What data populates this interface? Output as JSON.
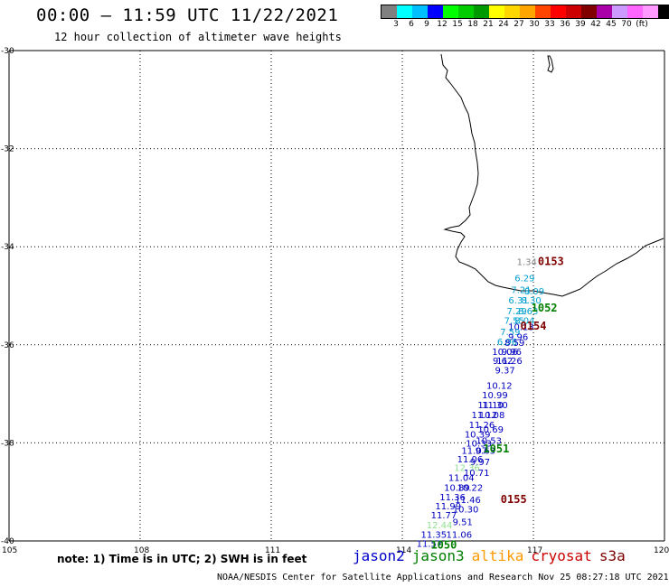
{
  "header": {
    "title": "00:00 – 11:59 UTC 11/22/2021",
    "subtitle": "12 hour collection of altimeter wave heights"
  },
  "colorbar": {
    "colors": [
      "#808080",
      "#00ffff",
      "#00bfff",
      "#0000ff",
      "#00ff00",
      "#00cc00",
      "#009900",
      "#ffff00",
      "#ffd700",
      "#ffa500",
      "#ff4500",
      "#ff0000",
      "#cc0000",
      "#800000",
      "#aa00aa",
      "#cc99ff",
      "#ff66ff",
      "#ff99ff",
      "#000000"
    ],
    "labels": [
      "3",
      "6",
      "9",
      "12",
      "15",
      "18",
      "21",
      "24",
      "27",
      "30",
      "33",
      "36",
      "39",
      "42",
      "45",
      "70",
      "(ft)"
    ]
  },
  "axes": {
    "lat_labels": [
      "-30",
      "-32",
      "-34",
      "-36",
      "-38",
      "-40"
    ],
    "lon_labels": [
      "105",
      "108",
      "111",
      "114",
      "117",
      "120"
    ]
  },
  "measurements": [
    {
      "v": "1.34",
      "c": "#808080",
      "lon": 116.85,
      "lat": -34.3
    },
    {
      "v": "6.29",
      "c": "#00a0d0",
      "lon": 116.8,
      "lat": -34.63
    },
    {
      "v": "7.21",
      "c": "#00a0d0",
      "lon": 116.72,
      "lat": -34.87
    },
    {
      "v": "8.09",
      "c": "#00a0d0",
      "lon": 117.02,
      "lat": -34.9
    },
    {
      "v": "6.31",
      "c": "#00a0d0",
      "lon": 116.66,
      "lat": -35.08
    },
    {
      "v": "8.30",
      "c": "#00a0d0",
      "lon": 116.95,
      "lat": -35.08
    },
    {
      "v": "7.29",
      "c": "#00a0d0",
      "lon": 116.62,
      "lat": -35.3
    },
    {
      "v": "8.63",
      "c": "#00a0d0",
      "lon": 116.88,
      "lat": -35.3
    },
    {
      "v": "7.55",
      "c": "#00a0d0",
      "lon": 116.56,
      "lat": -35.5
    },
    {
      "v": "8.04",
      "c": "#00a0d0",
      "lon": 116.8,
      "lat": -35.5
    },
    {
      "v": "10.13",
      "c": "#0000c0",
      "lon": 116.72,
      "lat": -35.63
    },
    {
      "v": "7.59",
      "c": "#00a0d0",
      "lon": 116.47,
      "lat": -35.73
    },
    {
      "v": "9.96",
      "c": "#0000c0",
      "lon": 116.65,
      "lat": -35.83
    },
    {
      "v": "6.96",
      "c": "#00a0d0",
      "lon": 116.4,
      "lat": -35.93
    },
    {
      "v": "8.59",
      "c": "#0000c0",
      "lon": 116.57,
      "lat": -35.95
    },
    {
      "v": "10.06",
      "c": "#0000c0",
      "lon": 116.35,
      "lat": -36.13
    },
    {
      "v": "9.96",
      "c": "#0000c0",
      "lon": 116.5,
      "lat": -36.13
    },
    {
      "v": "9.62",
      "c": "#0000c0",
      "lon": 116.3,
      "lat": -36.32
    },
    {
      "v": "11.26",
      "c": "#0000c0",
      "lon": 116.45,
      "lat": -36.32
    },
    {
      "v": "9.37",
      "c": "#0000c0",
      "lon": 116.35,
      "lat": -36.51
    },
    {
      "v": "10.12",
      "c": "#0000c0",
      "lon": 116.22,
      "lat": -36.82
    },
    {
      "v": "10.99",
      "c": "#0000c0",
      "lon": 116.12,
      "lat": -37.02
    },
    {
      "v": "11.10",
      "c": "#0000c0",
      "lon": 116.02,
      "lat": -37.22
    },
    {
      "v": "11.30",
      "c": "#0000c0",
      "lon": 116.12,
      "lat": -37.22
    },
    {
      "v": "11.12",
      "c": "#0000c0",
      "lon": 115.88,
      "lat": -37.42
    },
    {
      "v": "10.08",
      "c": "#0000c0",
      "lon": 116.05,
      "lat": -37.42
    },
    {
      "v": "11.26",
      "c": "#0000c0",
      "lon": 115.82,
      "lat": -37.62
    },
    {
      "v": "10.69",
      "c": "#0000c0",
      "lon": 116.02,
      "lat": -37.72
    },
    {
      "v": "10.39",
      "c": "#0000c0",
      "lon": 115.72,
      "lat": -37.82
    },
    {
      "v": "10.33",
      "c": "#0000c0",
      "lon": 115.75,
      "lat": -38.0
    },
    {
      "v": "10.53",
      "c": "#0000c0",
      "lon": 115.98,
      "lat": -37.95
    },
    {
      "v": "11.07",
      "c": "#0000c0",
      "lon": 115.65,
      "lat": -38.15
    },
    {
      "v": "9.63",
      "c": "#0000c0",
      "lon": 115.9,
      "lat": -38.15
    },
    {
      "v": "11.06",
      "c": "#0000c0",
      "lon": 115.55,
      "lat": -38.32
    },
    {
      "v": "9.97",
      "c": "#0000c0",
      "lon": 115.78,
      "lat": -38.38
    },
    {
      "v": "12.36",
      "c": "#90e090",
      "lon": 115.48,
      "lat": -38.5
    },
    {
      "v": "10.71",
      "c": "#0000c0",
      "lon": 115.7,
      "lat": -38.6
    },
    {
      "v": "11.04",
      "c": "#0000c0",
      "lon": 115.35,
      "lat": -38.7
    },
    {
      "v": "10.89",
      "c": "#0000c0",
      "lon": 115.25,
      "lat": -38.9
    },
    {
      "v": "10.22",
      "c": "#0000c0",
      "lon": 115.55,
      "lat": -38.9
    },
    {
      "v": "11.36",
      "c": "#0000c0",
      "lon": 115.15,
      "lat": -39.1
    },
    {
      "v": "11.46",
      "c": "#0000c0",
      "lon": 115.5,
      "lat": -39.15
    },
    {
      "v": "11.99",
      "c": "#0000c0",
      "lon": 115.05,
      "lat": -39.28
    },
    {
      "v": "10.30",
      "c": "#0000c0",
      "lon": 115.45,
      "lat": -39.35
    },
    {
      "v": "11.77",
      "c": "#0000c0",
      "lon": 114.95,
      "lat": -39.47
    },
    {
      "v": "9.51",
      "c": "#0000c0",
      "lon": 115.38,
      "lat": -39.6
    },
    {
      "v": "12.44",
      "c": "#90e090",
      "lon": 114.85,
      "lat": -39.67
    },
    {
      "v": "11.35",
      "c": "#0000c0",
      "lon": 114.72,
      "lat": -39.86
    },
    {
      "v": "11.06",
      "c": "#0000c0",
      "lon": 115.3,
      "lat": -39.86
    },
    {
      "v": "11.57",
      "c": "#0000c0",
      "lon": 114.62,
      "lat": -40.05
    }
  ],
  "passes": [
    {
      "v": "0153",
      "c": "#800000",
      "lon": 117.4,
      "lat": -34.3
    },
    {
      "v": "1052",
      "c": "#008000",
      "lon": 117.25,
      "lat": -35.25
    },
    {
      "v": "0154",
      "c": "#800000",
      "lon": 117.0,
      "lat": -35.62
    },
    {
      "v": "1051",
      "c": "#008000",
      "lon": 116.15,
      "lat": -38.12
    },
    {
      "v": "0155",
      "c": "#800000",
      "lon": 116.55,
      "lat": -39.15
    },
    {
      "v": "1050",
      "c": "#008000",
      "lon": 114.95,
      "lat": -40.08
    }
  ],
  "footer": {
    "note": "note: 1) Time is in UTC; 2) SWH is in feet",
    "legend": [
      {
        "name": "jason2",
        "c": "#0000cc"
      },
      {
        "name": "jason3",
        "c": "#008000"
      },
      {
        "name": "altika",
        "c": "#ff9900"
      },
      {
        "name": "cryosat",
        "c": "#cc0000"
      },
      {
        "name": "s3a",
        "c": "#800000"
      }
    ],
    "credit": "NOAA/NESDIS Center for Satellite Applications and Research   Nov 25 08:27:18 UTC 2021"
  }
}
